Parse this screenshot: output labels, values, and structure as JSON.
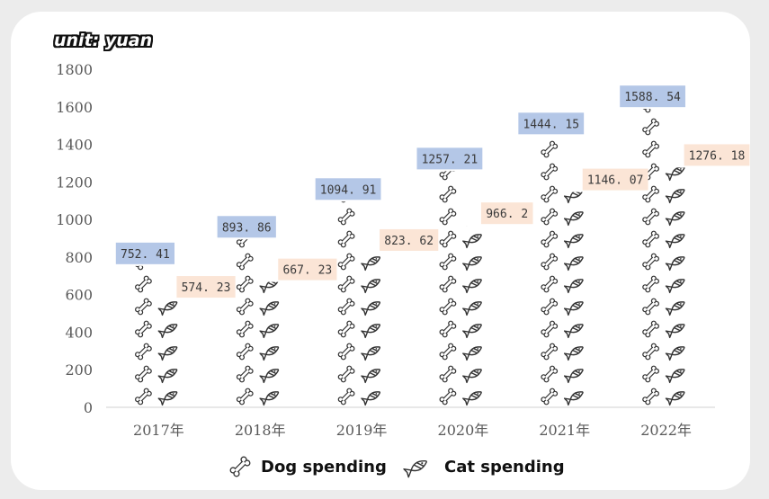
{
  "unit_label": "unit: yuan",
  "chart_data": {
    "type": "bar",
    "categories": [
      "2017年",
      "2018年",
      "2019年",
      "2020年",
      "2021年",
      "2022年"
    ],
    "series": [
      {
        "name": "Dog spending",
        "values": [
          752.41,
          893.86,
          1094.91,
          1257.21,
          1444.15,
          1588.54
        ],
        "labels": [
          "752. 41",
          "893. 86",
          "1094. 91",
          "1257. 21",
          "1444. 15",
          "1588. 54"
        ],
        "label_bg": "#b4c7e7",
        "icon": "bone-icon"
      },
      {
        "name": "Cat spending",
        "values": [
          574.23,
          667.23,
          823.62,
          966.2,
          1146.07,
          1276.18
        ],
        "labels": [
          "574. 23",
          "667. 23",
          "823. 62",
          "966. 2",
          "1146. 07",
          "1276. 18"
        ],
        "label_bg": "#fbe5d6",
        "icon": "fish-icon"
      }
    ],
    "ylim": [
      0,
      1800
    ],
    "yticks": [
      0,
      200,
      400,
      600,
      800,
      1000,
      1200,
      1400,
      1600,
      1800
    ],
    "grid": false,
    "legend": "bottom",
    "icon_color": "#333333",
    "axis_color": "#d9d9d9",
    "tick_color": "#595959"
  }
}
